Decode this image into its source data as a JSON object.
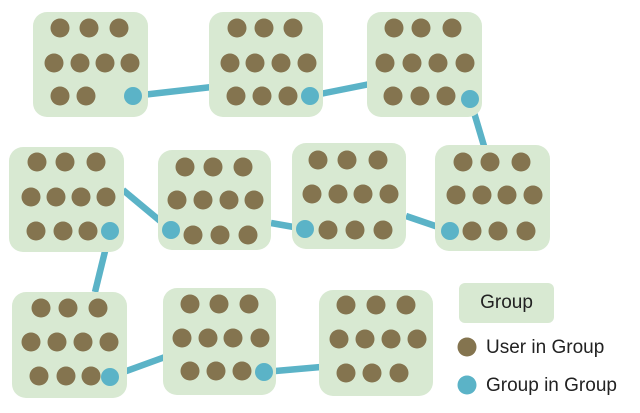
{
  "colors": {
    "group_fill": "#d8e9d2",
    "user_dot": "#84744f",
    "group_link": "#5bb3c7"
  },
  "legend": {
    "group_label": "Group",
    "user_label": "User in Group",
    "group_in_group_label": "Group in Group"
  }
}
